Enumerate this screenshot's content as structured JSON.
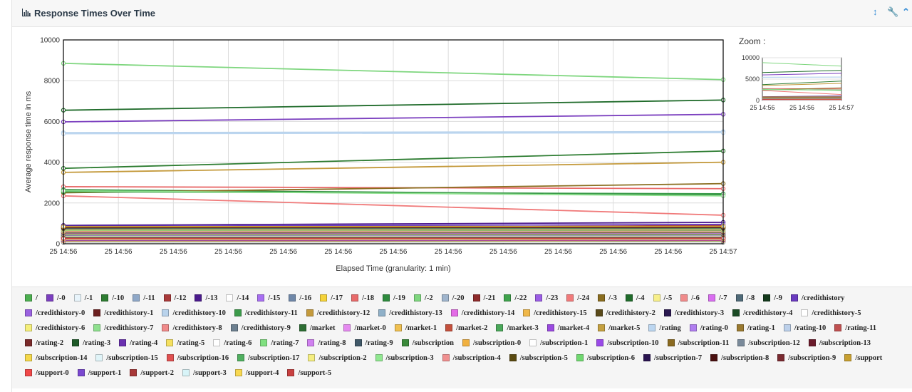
{
  "panel": {
    "title": "Response Times Over Time",
    "tools": [
      "vertical-resize-icon",
      "wrench-icon",
      "collapse-icon"
    ]
  },
  "zoom": {
    "label": "Zoom :",
    "y_ticks": [
      "10000",
      "5000",
      "0"
    ],
    "x_ticks": [
      "25 14:56",
      "25 14:56",
      "25 14:57"
    ]
  },
  "chart_data": {
    "type": "line",
    "title": "",
    "xlabel": "Elapsed Time (granularity: 1 min)",
    "ylabel": "Average response time in ms",
    "ylim": [
      0,
      10000
    ],
    "yticks": [
      "10000",
      "8000",
      "6000",
      "4000",
      "2000",
      "0"
    ],
    "x_tick_labels": [
      "25 14:56",
      "25 14:56",
      "25 14:56",
      "25 14:56",
      "25 14:56",
      "25 14:56",
      "25 14:56",
      "25 14:56",
      "25 14:56",
      "25 14:56",
      "25 14:56",
      "25 14:56",
      "25 14:57"
    ],
    "x": [
      "25 14:56",
      "25 14:57"
    ],
    "grid": true,
    "legend_position": "bottom",
    "series": [
      {
        "name": "/",
        "color": "#4caf50",
        "values": [
          250,
          320
        ]
      },
      {
        "name": "/-0",
        "color": "#7b3fbf",
        "values": [
          5980,
          6350
        ]
      },
      {
        "name": "/-1",
        "color": "#e8f4fb",
        "values": [
          200,
          240
        ]
      },
      {
        "name": "/-10",
        "color": "#2e7d32",
        "values": [
          3700,
          4550
        ]
      },
      {
        "name": "/-11",
        "color": "#8fa8c8",
        "values": [
          250,
          300
        ]
      },
      {
        "name": "/-12",
        "color": "#a93a3a",
        "values": [
          700,
          900
        ]
      },
      {
        "name": "/-13",
        "color": "#4a1a8c",
        "values": [
          900,
          1050
        ]
      },
      {
        "name": "/-14",
        "color": "#ffffff",
        "values": [
          100,
          120
        ]
      },
      {
        "name": "/-15",
        "color": "#a86ff2",
        "values": [
          400,
          450
        ]
      },
      {
        "name": "/-16",
        "color": "#6f87a8",
        "values": [
          350,
          400
        ]
      },
      {
        "name": "/-17",
        "color": "#f5d33a",
        "values": [
          150,
          180
        ]
      },
      {
        "name": "/-18",
        "color": "#e86a6a",
        "values": [
          2800,
          2700
        ]
      },
      {
        "name": "/-19",
        "color": "#2e8b3e",
        "values": [
          2650,
          2400
        ]
      },
      {
        "name": "/-2",
        "color": "#7ed67e",
        "values": [
          8850,
          8050
        ]
      },
      {
        "name": "/-20",
        "color": "#9fb4cc",
        "values": [
          300,
          330
        ]
      },
      {
        "name": "/-21",
        "color": "#8e2b2b",
        "values": [
          650,
          800
        ]
      },
      {
        "name": "/-22",
        "color": "#3fa34d",
        "values": [
          550,
          600
        ]
      },
      {
        "name": "/-23",
        "color": "#9b5de5",
        "values": [
          500,
          520
        ]
      },
      {
        "name": "/-24",
        "color": "#f07a7a",
        "values": [
          2350,
          1400
        ]
      },
      {
        "name": "/-3",
        "color": "#8a6d1f",
        "values": [
          2500,
          2950
        ]
      },
      {
        "name": "/-4",
        "color": "#1f6b2a",
        "values": [
          6550,
          7050
        ]
      },
      {
        "name": "/-5",
        "color": "#f7ef8a",
        "values": [
          180,
          200
        ]
      },
      {
        "name": "/-6",
        "color": "#f08b8b",
        "values": [
          280,
          300
        ]
      },
      {
        "name": "/-7",
        "color": "#d96ef0",
        "values": [
          350,
          380
        ]
      },
      {
        "name": "/-8",
        "color": "#4f6a78",
        "values": [
          420,
          450
        ]
      },
      {
        "name": "/-9",
        "color": "#143a1c",
        "values": [
          750,
          820
        ]
      },
      {
        "name": "/credithistory",
        "color": "#6a3bbf",
        "values": [
          850,
          950
        ]
      },
      {
        "name": "/credithistory-0",
        "color": "#9a62e0",
        "values": [
          600,
          650
        ]
      },
      {
        "name": "/credithistory-1",
        "color": "#6b1f1f",
        "values": [
          120,
          140
        ]
      },
      {
        "name": "/credithistory-10",
        "color": "#b9d3ec",
        "values": [
          5450,
          5500
        ]
      },
      {
        "name": "/credithistory-11",
        "color": "#3b9a4a",
        "values": [
          2550,
          2450
        ]
      },
      {
        "name": "/credithistory-12",
        "color": "#c49a3c",
        "values": [
          3500,
          4000
        ]
      },
      {
        "name": "/credithistory-13",
        "color": "#8fb0c8",
        "values": [
          300,
          320
        ]
      },
      {
        "name": "/credithistory-14",
        "color": "#e36be6",
        "values": [
          200,
          220
        ]
      },
      {
        "name": "/credithistory-15",
        "color": "#f0b84a",
        "values": [
          250,
          260
        ]
      },
      {
        "name": "/credithistory-2",
        "color": "#5a4a1a",
        "values": [
          150,
          160
        ]
      },
      {
        "name": "/credithistory-3",
        "color": "#2a1850",
        "values": [
          100,
          110
        ]
      },
      {
        "name": "/credithistory-4",
        "color": "#1a4a24",
        "values": [
          80,
          90
        ]
      },
      {
        "name": "/credithistory-5",
        "color": "#ffffff",
        "values": [
          60,
          70
        ]
      },
      {
        "name": "/credithistory-6",
        "color": "#f5ef7a",
        "values": [
          140,
          150
        ]
      },
      {
        "name": "/credithistory-7",
        "color": "#8ee08e",
        "values": [
          2600,
          2350
        ]
      },
      {
        "name": "/credithistory-8",
        "color": "#f08a8a",
        "values": [
          200,
          210
        ]
      },
      {
        "name": "/credithistory-9",
        "color": "#6d8090",
        "values": [
          320,
          340
        ]
      },
      {
        "name": "/market",
        "color": "#2e6e34",
        "values": [
          400,
          420
        ]
      },
      {
        "name": "/market-0",
        "color": "#e58af0",
        "values": [
          180,
          200
        ]
      },
      {
        "name": "/market-1",
        "color": "#f0c050",
        "values": [
          220,
          230
        ]
      },
      {
        "name": "/market-2",
        "color": "#c4503c",
        "values": [
          260,
          270
        ]
      },
      {
        "name": "/market-3",
        "color": "#4aa85a",
        "values": [
          300,
          310
        ]
      },
      {
        "name": "/market-4",
        "color": "#9a4ae0",
        "values": [
          340,
          350
        ]
      },
      {
        "name": "/market-5",
        "color": "#c4a040",
        "values": [
          380,
          390
        ]
      },
      {
        "name": "/rating",
        "color": "#bcd6f0",
        "values": [
          5400,
          5450
        ]
      },
      {
        "name": "/rating-0",
        "color": "#b07ef0",
        "values": [
          220,
          230
        ]
      },
      {
        "name": "/rating-1",
        "color": "#9a7a30",
        "values": [
          240,
          250
        ]
      },
      {
        "name": "/rating-10",
        "color": "#bcd0ea",
        "values": [
          260,
          270
        ]
      },
      {
        "name": "/rating-11",
        "color": "#c05050",
        "values": [
          280,
          290
        ]
      },
      {
        "name": "/rating-2",
        "color": "#7a2a2a",
        "values": [
          300,
          310
        ]
      },
      {
        "name": "/rating-3",
        "color": "#1e5a28",
        "values": [
          320,
          330
        ]
      },
      {
        "name": "/rating-4",
        "color": "#6a30b0",
        "values": [
          340,
          350
        ]
      },
      {
        "name": "/rating-5",
        "color": "#f5e060",
        "values": [
          360,
          370
        ]
      },
      {
        "name": "/rating-6",
        "color": "#ffffff",
        "values": [
          380,
          390
        ]
      },
      {
        "name": "/rating-7",
        "color": "#80e080",
        "values": [
          400,
          410
        ]
      },
      {
        "name": "/rating-8",
        "color": "#d080f0",
        "values": [
          420,
          430
        ]
      },
      {
        "name": "/rating-9",
        "color": "#405868",
        "values": [
          440,
          450
        ]
      },
      {
        "name": "/subscription",
        "color": "#3a8a3a",
        "values": [
          460,
          470
        ]
      },
      {
        "name": "/subscription-0",
        "color": "#f0b040",
        "values": [
          480,
          490
        ]
      },
      {
        "name": "/subscription-1",
        "color": "#ffffff",
        "values": [
          500,
          510
        ]
      },
      {
        "name": "/subscription-10",
        "color": "#9a4ae8",
        "values": [
          520,
          530
        ]
      },
      {
        "name": "/subscription-11",
        "color": "#8a6a20",
        "values": [
          540,
          550
        ]
      },
      {
        "name": "/subscription-12",
        "color": "#7a8a9a",
        "values": [
          560,
          570
        ]
      },
      {
        "name": "/subscription-13",
        "color": "#6a1a2a",
        "values": [
          580,
          590
        ]
      },
      {
        "name": "/subscription-14",
        "color": "#f5d84a",
        "values": [
          600,
          610
        ]
      },
      {
        "name": "/subscription-15",
        "color": "#e0f4f8",
        "values": [
          620,
          630
        ]
      },
      {
        "name": "/subscription-16",
        "color": "#e05050",
        "values": [
          640,
          650
        ]
      },
      {
        "name": "/subscription-17",
        "color": "#50b060",
        "values": [
          660,
          670
        ]
      },
      {
        "name": "/subscription-2",
        "color": "#f5ee80",
        "values": [
          680,
          690
        ]
      },
      {
        "name": "/subscription-3",
        "color": "#90e890",
        "values": [
          700,
          710
        ]
      },
      {
        "name": "/subscription-4",
        "color": "#f09090",
        "values": [
          720,
          730
        ]
      },
      {
        "name": "/subscription-5",
        "color": "#5a4a10",
        "values": [
          740,
          750
        ]
      },
      {
        "name": "/subscription-6",
        "color": "#70d870",
        "values": [
          760,
          770
        ]
      },
      {
        "name": "/subscription-7",
        "color": "#2a1450",
        "values": [
          780,
          790
        ]
      },
      {
        "name": "/subscription-8",
        "color": "#4a1010",
        "values": [
          800,
          810
        ]
      },
      {
        "name": "/subscription-9",
        "color": "#7a2a30",
        "values": [
          820,
          830
        ]
      },
      {
        "name": "/support",
        "color": "#c8a030",
        "values": [
          840,
          850
        ]
      },
      {
        "name": "/support-0",
        "color": "#f04848",
        "values": [
          160,
          170
        ]
      },
      {
        "name": "/support-1",
        "color": "#7a48d0",
        "values": [
          180,
          190
        ]
      },
      {
        "name": "/support-2",
        "color": "#a83838",
        "values": [
          200,
          210
        ]
      },
      {
        "name": "/support-3",
        "color": "#d8f4f8",
        "values": [
          220,
          230
        ]
      },
      {
        "name": "/support-4",
        "color": "#f8d850",
        "values": [
          240,
          250
        ]
      },
      {
        "name": "/support-5",
        "color": "#c84040",
        "values": [
          260,
          270
        ]
      }
    ]
  }
}
